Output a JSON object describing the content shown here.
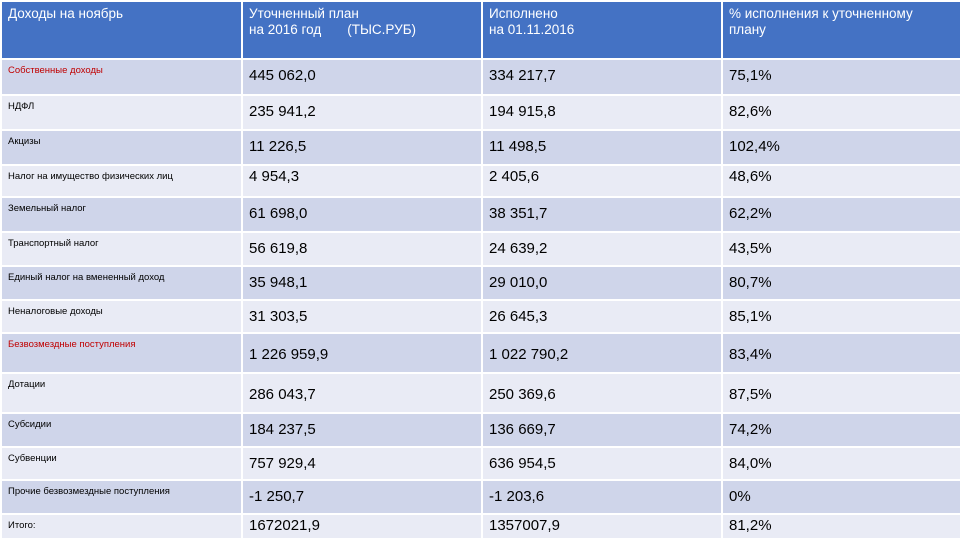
{
  "header": {
    "col1": "Доходы на ноябрь",
    "col2_line1": "Уточненный план",
    "col2_line2": "на 2016 год",
    "col2_unit": "(ТЫС.РУБ)",
    "col3_line1": "Исполнено",
    "col3_line2": "на 01.11.2016",
    "col4_line1": "% исполнения к уточненному",
    "col4_line2": "плану"
  },
  "rows": [
    {
      "label": "Собственные доходы",
      "plan": "445 062,0",
      "done": "334 217,7",
      "pct": "75,1%"
    },
    {
      "label": "НДФЛ",
      "plan": "235 941,2",
      "done": "194 915,8",
      "pct": "82,6%"
    },
    {
      "label": "Акцизы",
      "plan": "11 226,5",
      "done": "11 498,5",
      "pct": "102,4%"
    },
    {
      "label": "Налог на имущество физических лиц",
      "plan": "4 954,3",
      "done": "2 405,6",
      "pct": "48,6%"
    },
    {
      "label": "Земельный налог",
      "plan": "61 698,0",
      "done": "38 351,7",
      "pct": "62,2%"
    },
    {
      "label": "Транспортный налог",
      "plan": "56 619,8",
      "done": "24 639,2",
      "pct": "43,5%"
    },
    {
      "label": "Единый налог на вмененный доход",
      "plan": "35 948,1",
      "done": "29 010,0",
      "pct": "80,7%"
    },
    {
      "label": "Неналоговые доходы",
      "plan": "31 303,5",
      "done": "26 645,3",
      "pct": "85,1%"
    },
    {
      "label": "Безвозмездные поступления",
      "plan": "1 226 959,9",
      "done": "1 022 790,2",
      "pct": "83,4%"
    },
    {
      "label": "Дотации",
      "plan": "286 043,7",
      "done": "250 369,6",
      "pct": "87,5%"
    },
    {
      "label": "Субсидии",
      "plan": "184 237,5",
      "done": "136 669,7",
      "pct": "74,2%"
    },
    {
      "label": "Субвенции",
      "plan": "757 929,4",
      "done": "636 954,5",
      "pct": "84,0%"
    },
    {
      "label": "Прочие безвозмездные поступления",
      "plan": "-1 250,7",
      "done": "-1 203,6",
      "pct": "0%"
    },
    {
      "label": "Итого:",
      "plan": "1672021,9",
      "done": "1357007,9",
      "pct": "81,2%"
    }
  ],
  "colors": {
    "header_bg": "#4472c4",
    "row_dark": "#cfd5ea",
    "row_light": "#e9ebf5",
    "highlight_text": "#c00000"
  }
}
